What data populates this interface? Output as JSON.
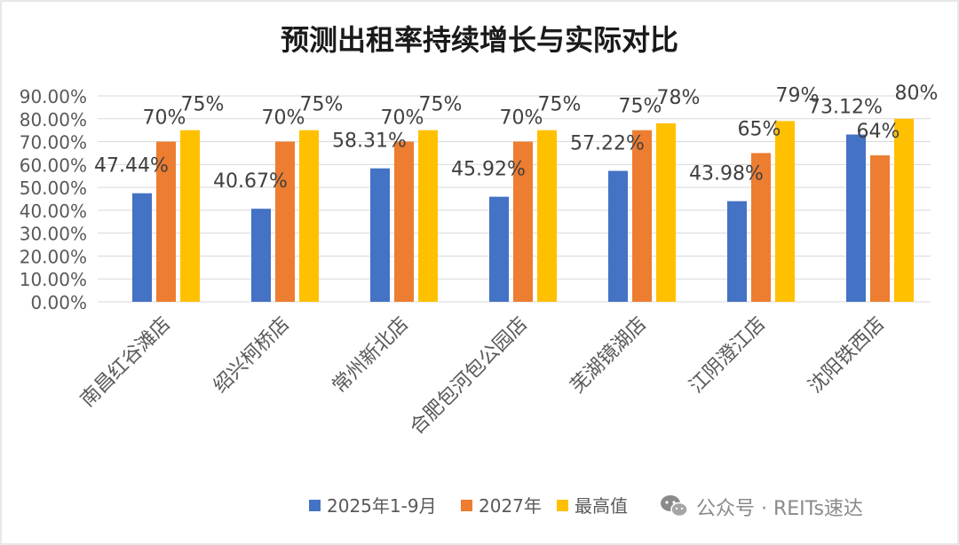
{
  "chart_data": {
    "type": "bar",
    "title": "预测出租率持续增长与实际对比",
    "categories": [
      "南昌红谷滩店",
      "绍兴柯桥店",
      "常州新北店",
      "合肥包河包公园店",
      "芜湖镜湖店",
      "江阴澄江店",
      "沈阳铁西店"
    ],
    "series": [
      {
        "name": "2025年1-9月",
        "values": [
          47.44,
          40.67,
          58.31,
          45.92,
          57.22,
          43.98,
          73.12
        ],
        "labels": [
          "47.44%",
          "40.67%",
          "58.31%",
          "45.92%",
          "57.22%",
          "43.98%",
          "73.12%"
        ],
        "color": "#4472C4"
      },
      {
        "name": "2027年",
        "values": [
          70,
          70,
          70,
          70,
          75,
          65,
          64
        ],
        "labels": [
          "70%",
          "70%",
          "70%",
          "70%",
          "75%",
          "65%",
          "64%"
        ],
        "color": "#ED7D31"
      },
      {
        "name": "最高值",
        "values": [
          75,
          75,
          75,
          75,
          78,
          79,
          80
        ],
        "labels": [
          "75%",
          "75%",
          "75%",
          "75%",
          "78%",
          "79%",
          "80%"
        ],
        "color": "#FFC000"
      }
    ],
    "yticks": [
      "0.00%",
      "10.00%",
      "20.00%",
      "30.00%",
      "40.00%",
      "50.00%",
      "60.00%",
      "70.00%",
      "80.00%",
      "90.00%"
    ],
    "ylim": [
      0,
      90
    ],
    "grid": true,
    "legend": "bottom-right"
  },
  "watermark": {
    "text": "公众号 · REITs速达",
    "icon": "wechat-icon"
  },
  "colors": {
    "grid": "#D9D9D9",
    "axis_text": "#595959",
    "label_text": "#404040",
    "title_text": "#1a1a1a"
  }
}
